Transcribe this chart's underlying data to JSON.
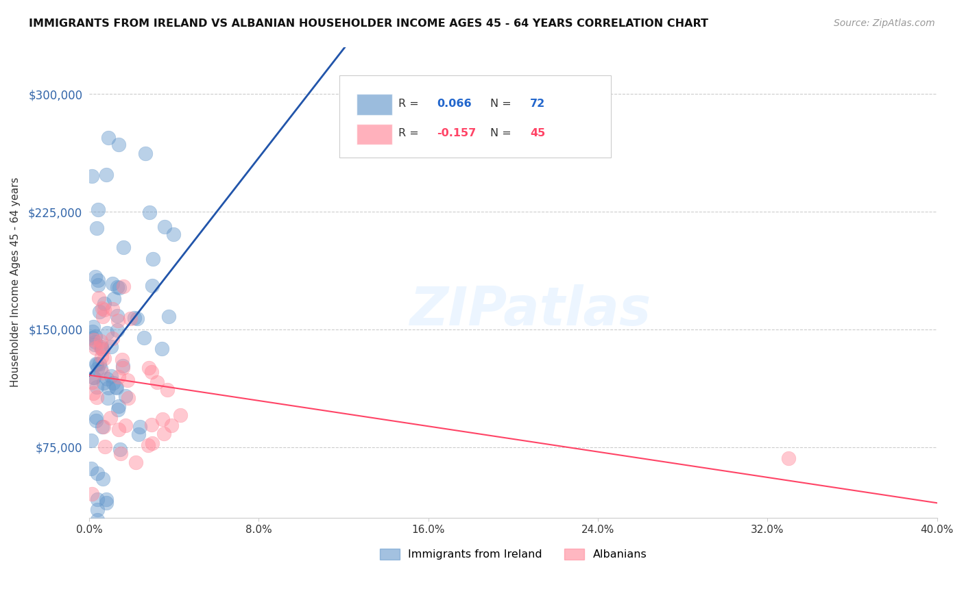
{
  "title": "IMMIGRANTS FROM IRELAND VS ALBANIAN HOUSEHOLDER INCOME AGES 45 - 64 YEARS CORRELATION CHART",
  "source": "Source: ZipAtlas.com",
  "ylabel": "Householder Income Ages 45 - 64 years",
  "ytick_values": [
    75000,
    150000,
    225000,
    300000
  ],
  "xlim": [
    0.0,
    0.4
  ],
  "ylim": [
    30000,
    330000
  ],
  "ireland_color": "#6699CC",
  "albanian_color": "#FF8899",
  "ireland_line_color": "#2255AA",
  "albanian_line_color": "#FF4466",
  "ireland_dashed_color": "#AACCEE",
  "ireland_R": 0.066,
  "ireland_N": 72,
  "albanian_R": -0.157,
  "albanian_N": 45,
  "watermark": "ZIPatlas",
  "legend_ireland_label": "Immigrants from Ireland",
  "legend_albanian_label": "Albanians"
}
